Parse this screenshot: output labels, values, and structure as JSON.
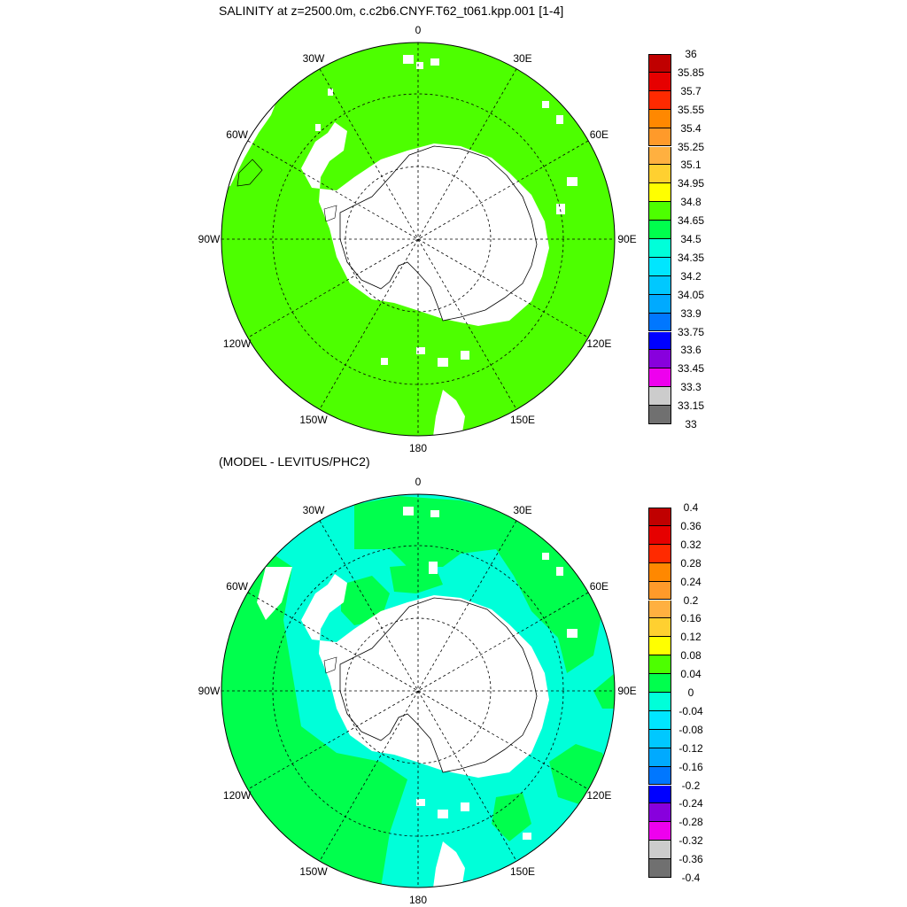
{
  "titles": {
    "top": "SALINITY at z=2500.0m, c.c2b6.CNYF.T62_t061.kpp.001 [1-4]",
    "bottom": "(MODEL - LEVITUS/PHC2)"
  },
  "longitude_labels": [
    "0",
    "30E",
    "60E",
    "90E",
    "120E",
    "150E",
    "180",
    "150W",
    "120W",
    "90W",
    "60W",
    "30W"
  ],
  "colors": {
    "land": "#ffffff",
    "top_field": "#4dff00",
    "bottom_field_neg": "#00ffd9",
    "bottom_field_pos": "#00ff4d"
  },
  "colorbars": [
    {
      "name": "salinity",
      "labels": [
        "36",
        "35.85",
        "35.7",
        "35.55",
        "35.4",
        "35.25",
        "35.1",
        "34.95",
        "34.8",
        "34.65",
        "34.5",
        "34.35",
        "34.2",
        "34.05",
        "33.9",
        "33.75",
        "33.6",
        "33.45",
        "33.3",
        "33.15",
        "33"
      ],
      "colors": [
        "#c00000",
        "#e60000",
        "#ff2a00",
        "#ff8800",
        "#ff9a2a",
        "#ffb040",
        "#ffd030",
        "#ffff00",
        "#4dff00",
        "#00ff4d",
        "#00ffd9",
        "#00e6ff",
        "#00c8ff",
        "#00aaff",
        "#0077ff",
        "#0000ff",
        "#8800dd",
        "#ee00ee",
        "#cccccc",
        "#707070"
      ]
    },
    {
      "name": "difference",
      "labels": [
        "0.4",
        "0.36",
        "0.32",
        "0.28",
        "0.24",
        "0.2",
        "0.16",
        "0.12",
        "0.08",
        "0.04",
        "0",
        "-0.04",
        "-0.08",
        "-0.12",
        "-0.16",
        "-0.2",
        "-0.24",
        "-0.28",
        "-0.32",
        "-0.36",
        "-0.4"
      ],
      "colors": [
        "#c00000",
        "#e60000",
        "#ff2a00",
        "#ff8800",
        "#ff9a2a",
        "#ffb040",
        "#ffd030",
        "#ffff00",
        "#4dff00",
        "#00ff4d",
        "#00ffd9",
        "#00e6ff",
        "#00c8ff",
        "#00aaff",
        "#0077ff",
        "#0000ff",
        "#8800dd",
        "#ee00ee",
        "#cccccc",
        "#707070"
      ]
    }
  ]
}
